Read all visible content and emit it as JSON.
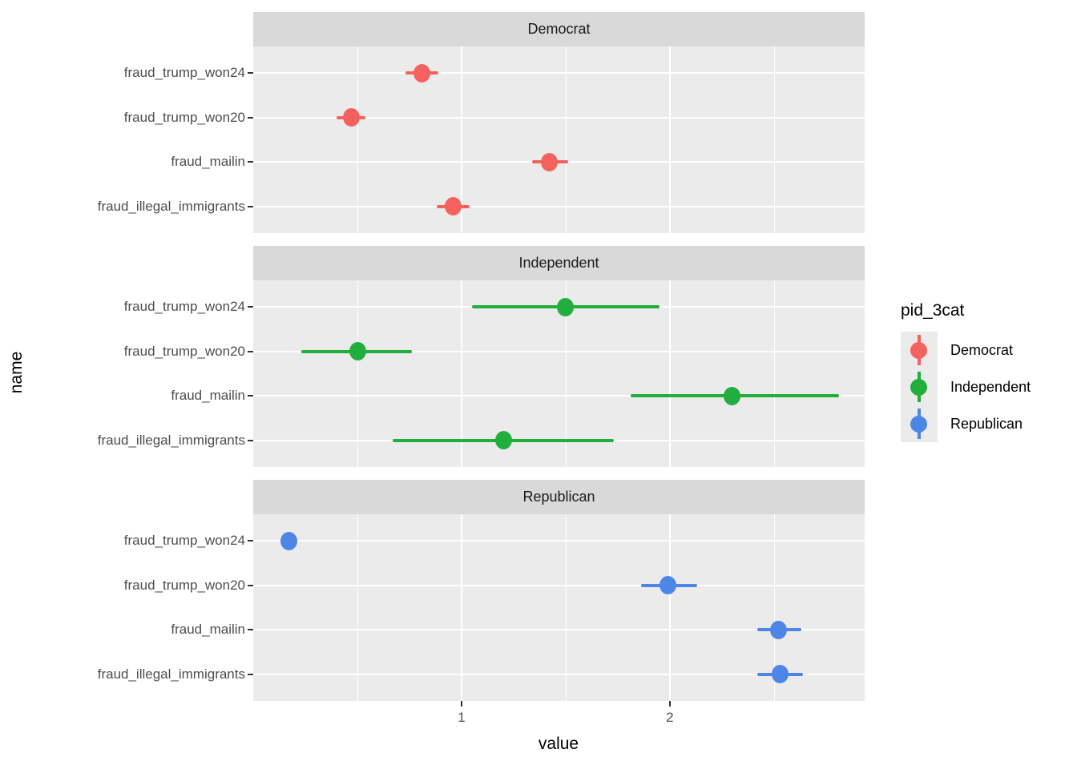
{
  "chart_data": {
    "type": "pointrange",
    "xlabel": "value",
    "ylabel": "name",
    "facet_variable": "pid_3cat",
    "x_tick_labels": [
      "1",
      "2"
    ],
    "x_tick_values": [
      1,
      2
    ],
    "x_range": [
      0,
      2.935
    ],
    "x_gridlines_major": [
      1,
      2
    ],
    "x_gridlines_minor": [
      0.5,
      1.5,
      2.5
    ],
    "grid": true,
    "legend_position": "right",
    "categories_top_to_bottom": [
      "fraud_trump_won24",
      "fraud_trump_won20",
      "fraud_mailin",
      "fraud_illegal_immigrants"
    ],
    "facets": [
      {
        "name": "Democrat",
        "color": "#F4625D",
        "points": [
          {
            "category": "fraud_trump_won24",
            "value": 0.81,
            "low": 0.73,
            "high": 0.89
          },
          {
            "category": "fraud_trump_won20",
            "value": 0.47,
            "low": 0.4,
            "high": 0.54
          },
          {
            "category": "fraud_mailin",
            "value": 1.42,
            "low": 1.34,
            "high": 1.51
          },
          {
            "category": "fraud_illegal_immigrants",
            "value": 0.96,
            "low": 0.88,
            "high": 1.04
          }
        ]
      },
      {
        "name": "Independent",
        "color": "#21AE3C",
        "points": [
          {
            "category": "fraud_trump_won24",
            "value": 1.5,
            "low": 1.05,
            "high": 1.95
          },
          {
            "category": "fraud_trump_won20",
            "value": 0.5,
            "low": 0.23,
            "high": 0.76
          },
          {
            "category": "fraud_mailin",
            "value": 2.3,
            "low": 1.81,
            "high": 2.81
          },
          {
            "category": "fraud_illegal_immigrants",
            "value": 1.2,
            "low": 0.67,
            "high": 1.73
          }
        ]
      },
      {
        "name": "Republican",
        "color": "#4E86E8",
        "points": [
          {
            "category": "fraud_trump_won24",
            "value": 0.17,
            "low": 0.14,
            "high": 0.21
          },
          {
            "category": "fraud_trump_won20",
            "value": 1.99,
            "low": 1.86,
            "high": 2.13
          },
          {
            "category": "fraud_mailin",
            "value": 2.52,
            "low": 2.42,
            "high": 2.63
          },
          {
            "category": "fraud_illegal_immigrants",
            "value": 2.53,
            "low": 2.42,
            "high": 2.64
          }
        ]
      }
    ]
  },
  "legend": {
    "title": "pid_3cat",
    "entries": [
      {
        "label": "Democrat",
        "color": "#F4625D"
      },
      {
        "label": "Independent",
        "color": "#21AE3C"
      },
      {
        "label": "Republican",
        "color": "#4E86E8"
      }
    ]
  },
  "theme": {
    "panel_bg": "#EBEBEB",
    "strip_bg": "#D9D9D9",
    "grid_color": "#FFFFFF",
    "axis_text_color": "#4D4D4D",
    "title_color": "#000000",
    "tick_color": "#333333",
    "legend_key_bg": "#EBEBEB"
  }
}
